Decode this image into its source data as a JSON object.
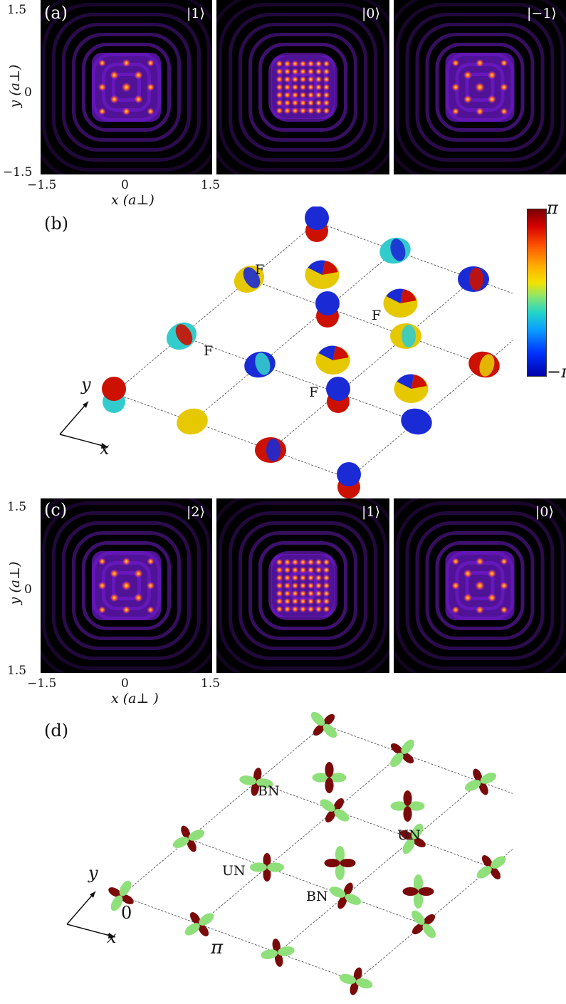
{
  "panels": {
    "a": {
      "label": "(a)",
      "kets": [
        "|1⟩",
        "|0⟩",
        "|−1⟩"
      ],
      "y_ticks": [
        "1.5",
        "0",
        "−1.5"
      ],
      "x_ticks": [
        "−1.5",
        "0",
        "1.5"
      ],
      "y_axis": "y (a⊥)",
      "x_axis": "x (a⊥)"
    },
    "b": {
      "label": "(b)",
      "site_labels": [
        "F",
        "F",
        "F",
        "F"
      ],
      "axes": {
        "y": "y",
        "x": "x"
      },
      "colorbar": {
        "top": "π",
        "bottom": "−π"
      }
    },
    "c": {
      "label": "(c)",
      "kets": [
        "|2⟩",
        "|1⟩",
        "|0⟩"
      ],
      "y_ticks": [
        "1.5",
        "0",
        "1.5"
      ],
      "x_ticks": [
        "−1.5",
        "0",
        "1.5"
      ],
      "y_axis": "y (a⊥)",
      "x_axis": "x (a⊥ )"
    },
    "d": {
      "label": "(d)",
      "site_labels": [
        "BN",
        "UN",
        "UN",
        "BN"
      ],
      "axes": {
        "y": "y",
        "x": "x"
      },
      "phase_labels": [
        "0",
        "π"
      ]
    }
  },
  "colors": {
    "density_glow": "#8a2be2",
    "density_peak": "#ffcc00",
    "lattice_red": "#cc1100",
    "lattice_cyan": "#33cccc",
    "lattice_yellow": "#e6c800",
    "lattice_blue": "#1a2bd6",
    "lobe_green": "#8fe07a",
    "lobe_darkred": "#7a0a0a"
  }
}
